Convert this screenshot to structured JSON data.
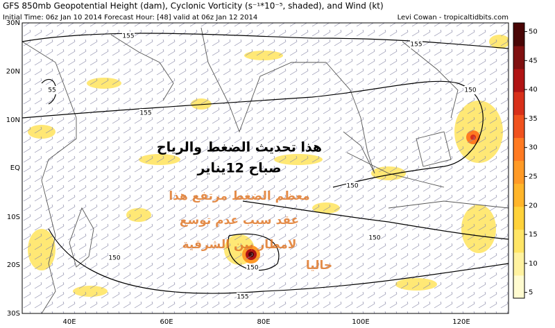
{
  "header": {
    "title": "GFS 850mb Geopotential Height (dam), Cyclonic Vorticity (s⁻¹*10⁻⁵, shaded), and Wind (kt)",
    "subtitle": "Initial Time: 06z Jan 10 2014 Forecast Hour: [48] valid at 06z Jan 12 2014",
    "credit": "Levi Cowan - tropicaltidbits.com"
  },
  "map": {
    "lat_labels": [
      "30N",
      "20N",
      "10N",
      "EQ",
      "10S",
      "20S",
      "30S"
    ],
    "lon_labels": [
      "40E",
      "60E",
      "80E",
      "100E",
      "120E"
    ],
    "contour_labels": [
      155,
      155,
      155,
      150,
      150,
      150,
      150,
      150,
      155,
      55
    ]
  },
  "colorbar": {
    "range": [
      4,
      51.5
    ],
    "ticks": [
      5,
      10,
      15,
      20,
      25,
      30,
      35,
      40,
      45,
      50
    ],
    "colors": [
      "#fffbd0",
      "#fff2a0",
      "#ffe566",
      "#ffd23a",
      "#ffb52a",
      "#ff9a26",
      "#ff7a22",
      "#f0521e",
      "#d8301a",
      "#b01414",
      "#801010",
      "#4a0606"
    ]
  },
  "annotation": {
    "lines": [
      "هذا تحديث الضغط والرياح",
      "صباح 12يناير",
      "معظم الضغط مرتفع هذا",
      "عقد سبب عدم توسع",
      "لامطار بين الشرقية",
      "حاليا"
    ]
  }
}
